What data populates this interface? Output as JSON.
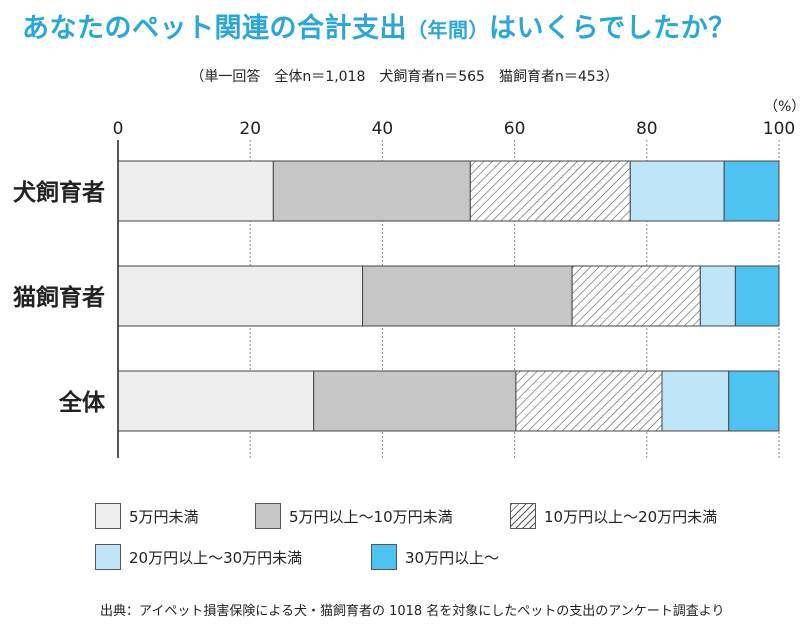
{
  "header": {
    "title_main": "あなたのペット関連の合計支出",
    "title_paren": "（年間）",
    "title_tail": "はいくらでしたか？",
    "subtitle": "（単一回答　全体n＝1,018　犬飼育者n＝565　猫飼育者n＝453）",
    "unit": "（%）"
  },
  "chart_data": {
    "type": "bar",
    "orientation": "horizontal",
    "stacked": true,
    "categories": [
      "犬飼育者",
      "猫飼育者",
      "全体"
    ],
    "series": [
      {
        "name": "5万円未満",
        "values": [
          23.5,
          37.0,
          29.6
        ],
        "color": "#eeeeee"
      },
      {
        "name": "5万円以上～10万円未満",
        "values": [
          29.8,
          31.7,
          30.6
        ],
        "color": "#c6c6c6"
      },
      {
        "name": "10万円以上～20万円未満",
        "values": [
          24.2,
          19.4,
          22.1
        ],
        "color": "hatch"
      },
      {
        "name": "20万円以上～30万円未満",
        "values": [
          14.2,
          5.3,
          10.1
        ],
        "color": "#bfe5f8"
      },
      {
        "name": "30万円以上～",
        "values": [
          8.3,
          6.6,
          7.6
        ],
        "color": "#4fc3f0"
      }
    ],
    "x_ticks": [
      "0",
      "20",
      "40",
      "60",
      "80",
      "100"
    ],
    "xlim": [
      0,
      100
    ],
    "grid": true,
    "legend_position": "bottom"
  },
  "footer": {
    "source": "出典：アイペット損害保険による犬・猫飼育者の 1018 名を対象にしたペットの支出のアンケート調査より"
  }
}
